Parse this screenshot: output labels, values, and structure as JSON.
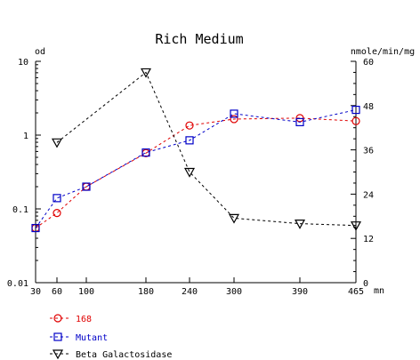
{
  "chart_data": {
    "type": "line",
    "title": "Rich Medium",
    "left_axis": {
      "label": "od",
      "scale": "log",
      "ylim": [
        0.01,
        10
      ],
      "ticks": [
        {
          "value": 10,
          "label": "10"
        },
        {
          "value": 1,
          "label": "1"
        },
        {
          "value": 0.1,
          "label": "0.1"
        },
        {
          "value": 0.01,
          "label": "0.01"
        }
      ]
    },
    "right_axis": {
      "label": "nmole/min/mg",
      "scale": "linear",
      "ylim": [
        0,
        60
      ],
      "ticks": [
        {
          "value": 60,
          "label": "60"
        },
        {
          "value": 48,
          "label": "48"
        },
        {
          "value": 36,
          "label": "36"
        },
        {
          "value": 24,
          "label": "24"
        },
        {
          "value": 12,
          "label": "12"
        },
        {
          "value": 0,
          "label": "0"
        }
      ]
    },
    "x_axis": {
      "unit_label": "mn",
      "xlim": [
        30,
        465
      ],
      "ticks": [
        {
          "value": 30,
          "label": "30"
        },
        {
          "value": 60,
          "label": "60"
        },
        {
          "value": 100,
          "label": "100"
        },
        {
          "value": 180,
          "label": "180"
        },
        {
          "value": 240,
          "label": "240"
        },
        {
          "value": 300,
          "label": "300"
        },
        {
          "value": 390,
          "label": "390"
        },
        {
          "value": 465,
          "label": "465"
        }
      ]
    },
    "series": [
      {
        "name": "168",
        "axis": "left",
        "marker": "circle",
        "color": "#e00000",
        "x": [
          30,
          60,
          100,
          180,
          240,
          300,
          390,
          465
        ],
        "y": [
          0.055,
          0.088,
          0.2,
          0.57,
          1.35,
          1.65,
          1.7,
          1.55
        ]
      },
      {
        "name": "Mutant",
        "axis": "left",
        "marker": "square",
        "color": "#0000c8",
        "x": [
          30,
          60,
          100,
          180,
          240,
          300,
          390,
          465
        ],
        "y": [
          0.055,
          0.14,
          0.2,
          0.58,
          0.85,
          1.95,
          1.5,
          2.2
        ]
      },
      {
        "name": "Beta Galactosidase",
        "axis": "right",
        "marker": "triangle-down",
        "color": "#000000",
        "x": [
          60,
          180,
          240,
          300,
          390,
          465
        ],
        "y": [
          38,
          57,
          30,
          17.5,
          16,
          15.5
        ]
      }
    ],
    "legend_placement": "bottom-left",
    "grid": false
  }
}
